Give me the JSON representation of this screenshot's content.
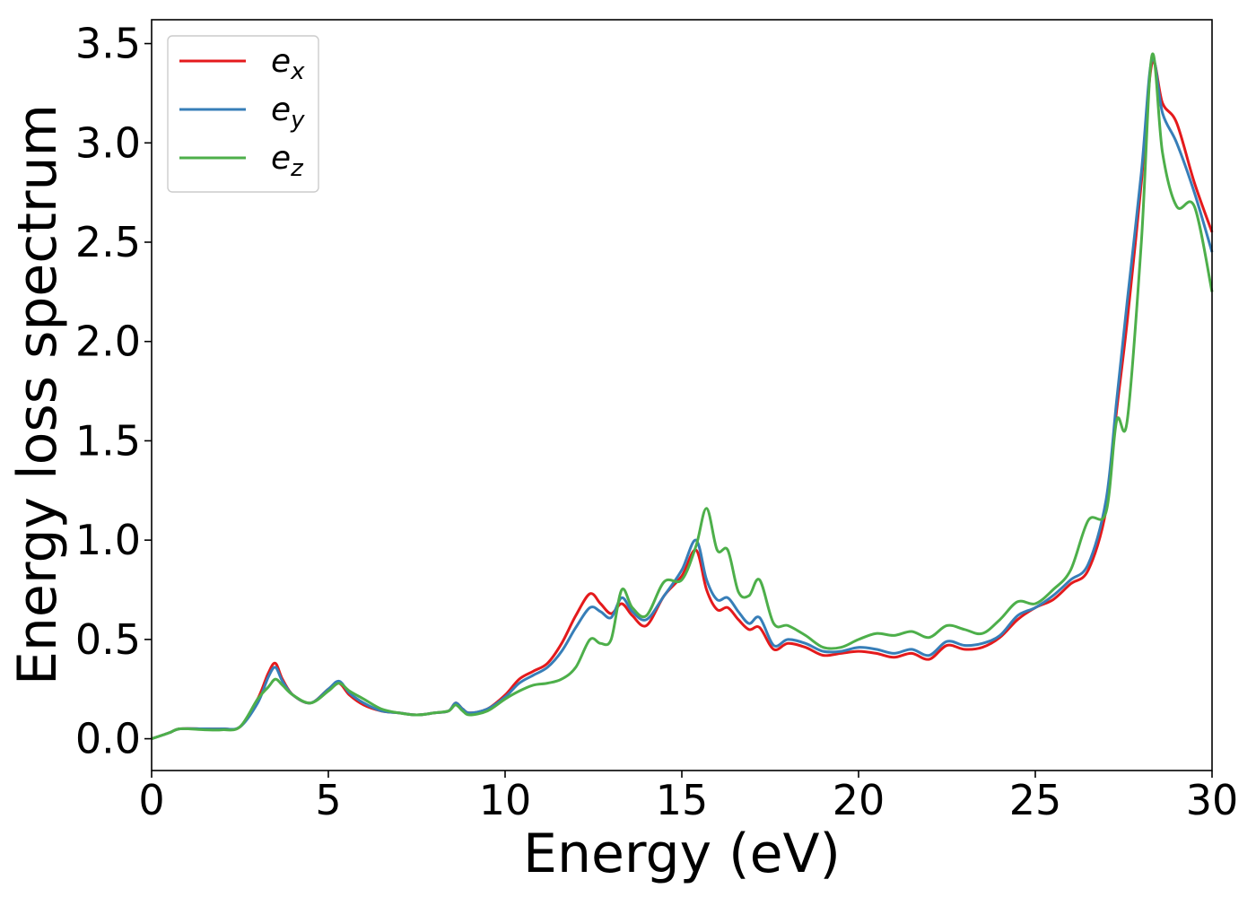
{
  "chart_data": {
    "type": "line",
    "xlabel": "Energy (eV)",
    "ylabel": "Energy loss spectrum",
    "xlim": [
      0,
      30
    ],
    "ylim": [
      -0.16,
      3.62
    ],
    "xticks": [
      0,
      5,
      10,
      15,
      20,
      25,
      30
    ],
    "xtick_labels": [
      "0",
      "5",
      "10",
      "15",
      "20",
      "25",
      "30"
    ],
    "yticks": [
      0.0,
      0.5,
      1.0,
      1.5,
      2.0,
      2.5,
      3.0,
      3.5
    ],
    "ytick_labels": [
      "0.0",
      "0.5",
      "1.0",
      "1.5",
      "2.0",
      "2.5",
      "3.0",
      "3.5"
    ],
    "grid": false,
    "legend_position": "top-left",
    "series": [
      {
        "name": "e_x",
        "legend_base": "e",
        "legend_sub": "x",
        "color": "#e41a1c",
        "x": [
          0,
          0.5,
          0.8,
          1.5,
          2.0,
          2.5,
          3.0,
          3.3,
          3.5,
          3.7,
          4.0,
          4.5,
          5.0,
          5.3,
          5.6,
          6.0,
          6.5,
          7.0,
          7.5,
          8.0,
          8.4,
          8.6,
          8.8,
          9.0,
          9.5,
          10.0,
          10.4,
          10.8,
          11.2,
          11.6,
          12.0,
          12.4,
          12.7,
          13.0,
          13.3,
          13.6,
          14.0,
          14.5,
          15.0,
          15.4,
          15.7,
          16.0,
          16.3,
          16.6,
          16.9,
          17.2,
          17.6,
          18.0,
          18.5,
          19.0,
          19.5,
          20.0,
          20.5,
          21.0,
          21.5,
          22.0,
          22.5,
          23.0,
          23.5,
          24.0,
          24.5,
          25.0,
          25.5,
          26.0,
          26.5,
          27.0,
          27.3,
          27.6,
          28.0,
          28.3,
          28.6,
          29.0,
          29.5,
          30.0
        ],
        "y": [
          0.0,
          0.03,
          0.05,
          0.05,
          0.05,
          0.06,
          0.2,
          0.33,
          0.38,
          0.3,
          0.22,
          0.18,
          0.25,
          0.28,
          0.22,
          0.17,
          0.14,
          0.13,
          0.12,
          0.13,
          0.14,
          0.18,
          0.15,
          0.13,
          0.15,
          0.22,
          0.3,
          0.34,
          0.38,
          0.48,
          0.62,
          0.73,
          0.68,
          0.63,
          0.68,
          0.62,
          0.57,
          0.72,
          0.82,
          0.95,
          0.75,
          0.65,
          0.66,
          0.6,
          0.55,
          0.56,
          0.45,
          0.48,
          0.46,
          0.42,
          0.43,
          0.44,
          0.43,
          0.41,
          0.43,
          0.4,
          0.47,
          0.45,
          0.46,
          0.51,
          0.6,
          0.66,
          0.7,
          0.78,
          0.85,
          1.15,
          1.65,
          2.1,
          2.8,
          3.4,
          3.2,
          3.1,
          2.8,
          2.55
        ]
      },
      {
        "name": "e_y",
        "legend_base": "e",
        "legend_sub": "y",
        "color": "#377eb8",
        "x": [
          0,
          0.5,
          0.8,
          1.5,
          2.0,
          2.5,
          3.0,
          3.3,
          3.5,
          3.7,
          4.0,
          4.5,
          5.0,
          5.3,
          5.6,
          6.0,
          6.5,
          7.0,
          7.5,
          8.0,
          8.4,
          8.6,
          8.8,
          9.0,
          9.5,
          10.0,
          10.4,
          10.8,
          11.2,
          11.6,
          12.0,
          12.4,
          12.7,
          13.0,
          13.3,
          13.6,
          14.0,
          14.5,
          15.0,
          15.4,
          15.7,
          16.0,
          16.3,
          16.6,
          16.9,
          17.2,
          17.6,
          18.0,
          18.5,
          19.0,
          19.5,
          20.0,
          20.5,
          21.0,
          21.5,
          22.0,
          22.5,
          23.0,
          23.5,
          24.0,
          24.5,
          25.0,
          25.5,
          26.0,
          26.5,
          27.0,
          27.3,
          27.6,
          28.0,
          28.3,
          28.6,
          29.0,
          29.5,
          30.0
        ],
        "y": [
          0.0,
          0.03,
          0.05,
          0.05,
          0.05,
          0.06,
          0.18,
          0.31,
          0.36,
          0.29,
          0.22,
          0.18,
          0.25,
          0.29,
          0.23,
          0.18,
          0.14,
          0.13,
          0.12,
          0.13,
          0.14,
          0.18,
          0.15,
          0.13,
          0.15,
          0.21,
          0.28,
          0.32,
          0.36,
          0.44,
          0.56,
          0.66,
          0.64,
          0.61,
          0.71,
          0.64,
          0.6,
          0.72,
          0.85,
          1.0,
          0.8,
          0.7,
          0.71,
          0.64,
          0.58,
          0.61,
          0.47,
          0.5,
          0.48,
          0.44,
          0.44,
          0.46,
          0.45,
          0.43,
          0.45,
          0.42,
          0.49,
          0.47,
          0.48,
          0.52,
          0.62,
          0.66,
          0.72,
          0.8,
          0.88,
          1.2,
          1.7,
          2.2,
          2.85,
          3.42,
          3.15,
          3.0,
          2.75,
          2.45
        ]
      },
      {
        "name": "e_z",
        "legend_base": "e",
        "legend_sub": "z",
        "color": "#4daf4a",
        "x": [
          0,
          0.5,
          0.8,
          1.5,
          2.0,
          2.5,
          3.0,
          3.3,
          3.5,
          3.7,
          4.0,
          4.5,
          5.0,
          5.3,
          5.6,
          6.0,
          6.5,
          7.0,
          7.5,
          8.0,
          8.4,
          8.6,
          8.8,
          9.0,
          9.5,
          10.0,
          10.4,
          10.8,
          11.2,
          11.6,
          12.0,
          12.4,
          12.7,
          13.0,
          13.3,
          13.6,
          14.0,
          14.5,
          15.0,
          15.4,
          15.7,
          16.0,
          16.3,
          16.6,
          16.9,
          17.2,
          17.6,
          18.0,
          18.5,
          19.0,
          19.5,
          20.0,
          20.5,
          21.0,
          21.5,
          22.0,
          22.5,
          23.0,
          23.5,
          24.0,
          24.5,
          25.0,
          25.5,
          26.0,
          26.5,
          27.0,
          27.3,
          27.6,
          28.0,
          28.3,
          28.6,
          29.0,
          29.5,
          30.0
        ],
        "y": [
          0.0,
          0.03,
          0.05,
          0.045,
          0.045,
          0.06,
          0.2,
          0.26,
          0.3,
          0.27,
          0.22,
          0.18,
          0.24,
          0.28,
          0.24,
          0.2,
          0.15,
          0.13,
          0.12,
          0.13,
          0.14,
          0.17,
          0.14,
          0.12,
          0.14,
          0.2,
          0.24,
          0.27,
          0.28,
          0.3,
          0.36,
          0.5,
          0.48,
          0.5,
          0.75,
          0.66,
          0.62,
          0.79,
          0.8,
          0.97,
          1.16,
          0.95,
          0.95,
          0.74,
          0.72,
          0.8,
          0.58,
          0.57,
          0.52,
          0.46,
          0.46,
          0.5,
          0.53,
          0.52,
          0.54,
          0.51,
          0.57,
          0.55,
          0.53,
          0.6,
          0.69,
          0.68,
          0.75,
          0.85,
          1.1,
          1.14,
          1.6,
          1.6,
          2.5,
          3.44,
          2.95,
          2.68,
          2.68,
          2.25
        ]
      }
    ]
  }
}
